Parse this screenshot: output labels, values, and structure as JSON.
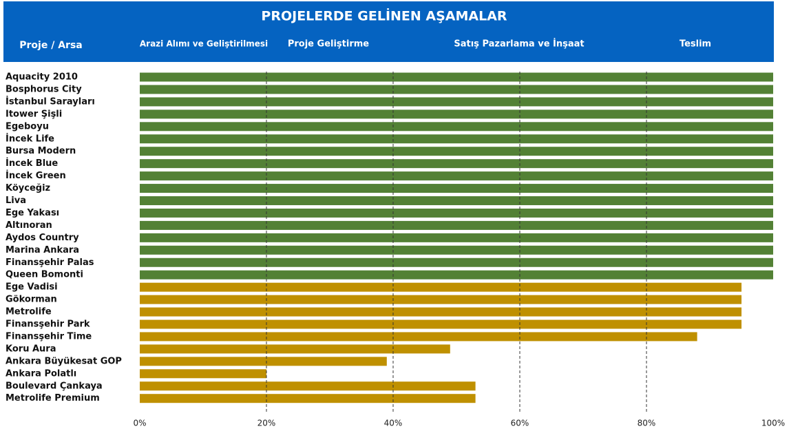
{
  "chart_data": {
    "type": "bar",
    "orientation": "horizontal",
    "title": "PROJELERDE GELİNEN AŞAMALAR",
    "category_header": "Proje / Arsa",
    "stages": [
      "Arazi Alımı ve Geliştirilmesi",
      "Proje Geliştirme",
      "Satış Pazarlama ve İnşaat",
      "Teslim"
    ],
    "categories": [
      "Aquacity 2010",
      "Bosphorus City",
      "İstanbul Sarayları",
      "Itower Şişli",
      "Egeboyu",
      "İncek Life",
      "Bursa Modern",
      "İncek Blue",
      "İncek Green",
      "Köyceğiz",
      "Liva",
      "Ege Yakası",
      "Altınoran",
      "Aydos Country",
      "Marina Ankara",
      "Finansşehir Palas",
      "Queen Bomonti",
      "Ege Vadisi",
      "Gökorman",
      "Metrolife",
      "Finansşehir Park",
      "Finansşehir Time",
      "Koru Aura",
      "Ankara Büyükesat GOP",
      "Ankara Polatlı",
      "Boulevard Çankaya",
      "Metrolife Premium"
    ],
    "values": [
      100,
      100,
      100,
      100,
      100,
      100,
      100,
      100,
      100,
      100,
      100,
      100,
      100,
      100,
      100,
      100,
      100,
      95,
      95,
      95,
      95,
      88,
      49,
      39,
      20,
      53,
      53
    ],
    "colors": [
      "#538135",
      "#538135",
      "#538135",
      "#538135",
      "#538135",
      "#538135",
      "#538135",
      "#538135",
      "#538135",
      "#538135",
      "#538135",
      "#538135",
      "#538135",
      "#538135",
      "#538135",
      "#538135",
      "#538135",
      "#bf9000",
      "#bf9000",
      "#bf9000",
      "#bf9000",
      "#bf9000",
      "#bf9000",
      "#bf9000",
      "#bf9000",
      "#bf9000",
      "#bf9000"
    ],
    "xlim": [
      0,
      100
    ],
    "xticks": [
      {
        "value": 0,
        "label": "0%"
      },
      {
        "value": 20,
        "label": "20%"
      },
      {
        "value": 40,
        "label": "40%"
      },
      {
        "value": 60,
        "label": "60%"
      },
      {
        "value": 80,
        "label": "80%"
      },
      {
        "value": 100,
        "label": "100%"
      }
    ],
    "grid": true
  }
}
